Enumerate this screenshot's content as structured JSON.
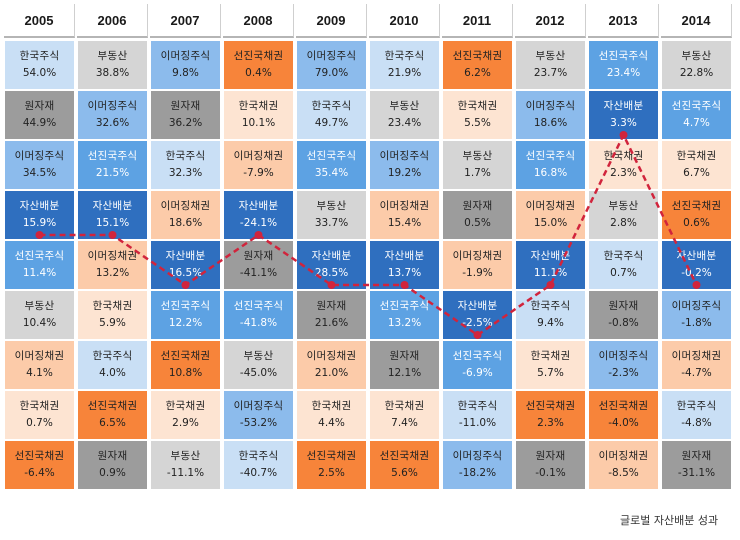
{
  "chart_data": {
    "type": "table",
    "columns": [
      "2005",
      "2006",
      "2007",
      "2008",
      "2009",
      "2010",
      "2011",
      "2012",
      "2013",
      "2014"
    ],
    "cells": [
      [
        [
          "한국주식",
          "54.0%"
        ],
        [
          "원자재",
          "44.9%"
        ],
        [
          "이머징주식",
          "34.5%"
        ],
        [
          "자산배분",
          "15.9%"
        ],
        [
          "선진국주식",
          "11.4%"
        ],
        [
          "부동산",
          "10.4%"
        ],
        [
          "이머징채권",
          "4.1%"
        ],
        [
          "한국채권",
          "0.7%"
        ],
        [
          "선진국채권",
          "-6.4%"
        ]
      ],
      [
        [
          "부동산",
          "38.8%"
        ],
        [
          "이머징주식",
          "32.6%"
        ],
        [
          "선진국주식",
          "21.5%"
        ],
        [
          "자산배분",
          "15.1%"
        ],
        [
          "이머징채권",
          "13.2%"
        ],
        [
          "한국채권",
          "5.9%"
        ],
        [
          "한국주식",
          "4.0%"
        ],
        [
          "선진국채권",
          "6.5%"
        ],
        [
          "원자재",
          "0.9%"
        ]
      ],
      [
        [
          "이머징주식",
          "9.8%"
        ],
        [
          "원자재",
          "36.2%"
        ],
        [
          "한국주식",
          "32.3%"
        ],
        [
          "이머징채권",
          "18.6%"
        ],
        [
          "자산배분",
          "16.5%"
        ],
        [
          "선진국주식",
          "12.2%"
        ],
        [
          "선진국채권",
          "10.8%"
        ],
        [
          "한국채권",
          "2.9%"
        ],
        [
          "부동산",
          "-11.1%"
        ]
      ],
      [
        [
          "선진국채권",
          "0.4%"
        ],
        [
          "한국채권",
          "10.1%"
        ],
        [
          "이머징채권",
          "-7.9%"
        ],
        [
          "자산배분",
          "-24.1%"
        ],
        [
          "원자재",
          "-41.1%"
        ],
        [
          "선진국주식",
          "-41.8%"
        ],
        [
          "부동산",
          "-45.0%"
        ],
        [
          "이머징주식",
          "-53.2%"
        ],
        [
          "한국주식",
          "-40.7%"
        ]
      ],
      [
        [
          "이머징주식",
          "79.0%"
        ],
        [
          "한국주식",
          "49.7%"
        ],
        [
          "선진국주식",
          "35.4%"
        ],
        [
          "부동산",
          "33.7%"
        ],
        [
          "자산배분",
          "28.5%"
        ],
        [
          "원자재",
          "21.6%"
        ],
        [
          "이머징채권",
          "21.0%"
        ],
        [
          "한국채권",
          "4.4%"
        ],
        [
          "선진국채권",
          "2.5%"
        ]
      ],
      [
        [
          "한국주식",
          "21.9%"
        ],
        [
          "부동산",
          "23.4%"
        ],
        [
          "이머징주식",
          "19.2%"
        ],
        [
          "이머징채권",
          "15.4%"
        ],
        [
          "자산배분",
          "13.7%"
        ],
        [
          "선진국주식",
          "13.2%"
        ],
        [
          "원자재",
          "12.1%"
        ],
        [
          "한국채권",
          "7.4%"
        ],
        [
          "선진국채권",
          "5.6%"
        ]
      ],
      [
        [
          "선진국채권",
          "6.2%"
        ],
        [
          "한국채권",
          "5.5%"
        ],
        [
          "부동산",
          "1.7%"
        ],
        [
          "원자재",
          "0.5%"
        ],
        [
          "이머징채권",
          "-1.9%"
        ],
        [
          "자산배분",
          "-2.5%"
        ],
        [
          "선진국주식",
          "-6.9%"
        ],
        [
          "한국주식",
          "-11.0%"
        ],
        [
          "이머징주식",
          "-18.2%"
        ]
      ],
      [
        [
          "부동산",
          "23.7%"
        ],
        [
          "이머징주식",
          "18.6%"
        ],
        [
          "선진국주식",
          "16.8%"
        ],
        [
          "이머징채권",
          "15.0%"
        ],
        [
          "자산배분",
          "11.1%"
        ],
        [
          "한국주식",
          "9.4%"
        ],
        [
          "한국채권",
          "5.7%"
        ],
        [
          "선진국채권",
          "2.3%"
        ],
        [
          "원자재",
          "-0.1%"
        ]
      ],
      [
        [
          "선진국주식",
          "23.4%"
        ],
        [
          "자산배분",
          "3.3%"
        ],
        [
          "한국채권",
          "2.3%"
        ],
        [
          "부동산",
          "2.8%"
        ],
        [
          "한국주식",
          "0.7%"
        ],
        [
          "원자재",
          "-0.8%"
        ],
        [
          "이머징주식",
          "-2.3%"
        ],
        [
          "선진국채권",
          "-4.0%"
        ],
        [
          "이머징채권",
          "-8.5%"
        ]
      ],
      [
        [
          "부동산",
          "22.8%"
        ],
        [
          "선진국주식",
          "4.7%"
        ],
        [
          "한국채권",
          "6.7%"
        ],
        [
          "선진국채권",
          "0.6%"
        ],
        [
          "자산배분",
          "-0.2%"
        ],
        [
          "이머징주식",
          "-1.8%"
        ],
        [
          "이머징채권",
          "-4.7%"
        ],
        [
          "한국주식",
          "-4.8%"
        ],
        [
          "원자재",
          "-31.1%"
        ]
      ]
    ],
    "series": [
      {
        "name": "글로벌 자산배분 성과",
        "values": [
          15.9,
          15.1,
          16.5,
          -24.1,
          28.5,
          13.7,
          -2.5,
          11.1,
          3.3,
          -0.2
        ],
        "ranks": [
          4,
          4,
          5,
          4,
          5,
          5,
          6,
          5,
          2,
          5
        ]
      }
    ],
    "colors": {
      "한국주식": "#c9dff5",
      "부동산": "#d5d5d5",
      "이머징주식": "#8cbbec",
      "선진국채권": "#f7843a",
      "원자재": "#9c9c9c",
      "이머징채권": "#fccba9",
      "선진국주식": "#5da2e3",
      "한국채권": "#fde4d2",
      "자산배분": "#2f6fbf"
    },
    "line_color": "#d1243c",
    "legend_position": "bottom-right"
  }
}
